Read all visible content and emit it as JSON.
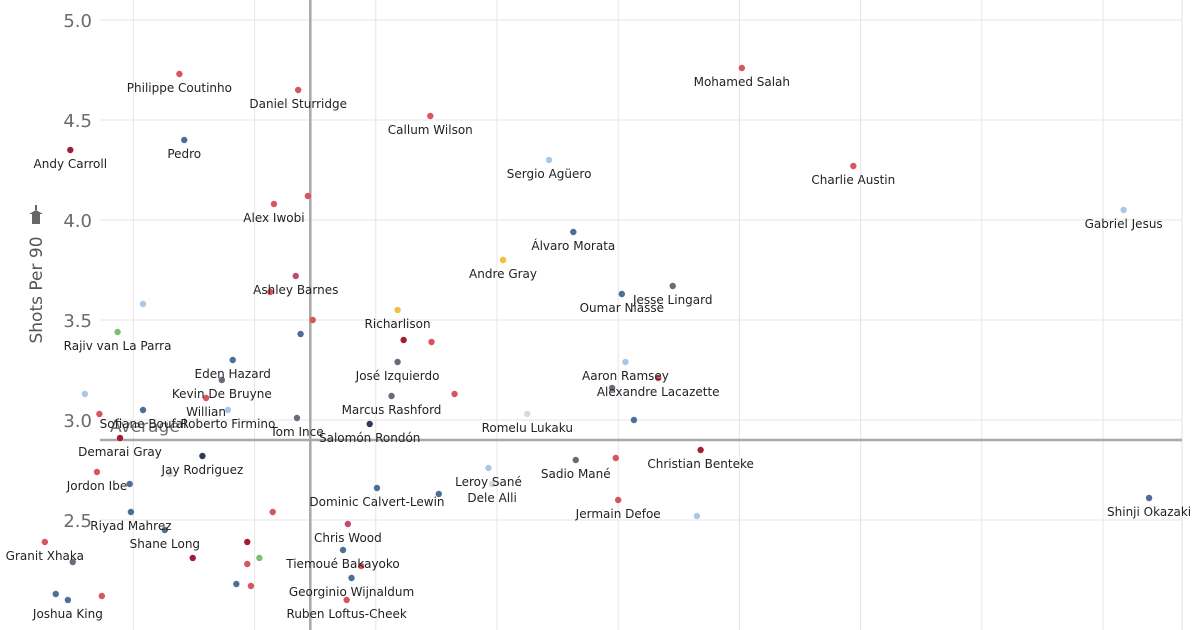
{
  "chart_data": {
    "type": "scatter",
    "xlabel": "",
    "ylabel": "Shots Per 90",
    "ylim": [
      1.95,
      5.1
    ],
    "xlim": [
      -2.3,
      7.6
    ],
    "y_ticks": [
      "5.0",
      "4.5",
      "4.0",
      "3.5",
      "3.0",
      "2.5"
    ],
    "y_tick_values": [
      5.0,
      4.5,
      4.0,
      3.5,
      3.0,
      2.5
    ],
    "x_gridlines": [
      -1.2,
      -0.2,
      0.8,
      1.8,
      2.8,
      3.8,
      4.8,
      5.8,
      6.8
    ],
    "grid": true,
    "reference_lines": {
      "y_average": 2.9,
      "y_average_label": "Average",
      "x_average": 0.26
    },
    "points": [
      {
        "label": "Philippe Coutinho",
        "x": -0.82,
        "y": 4.73,
        "color": "#d7565d"
      },
      {
        "label": "Daniel Sturridge",
        "x": 0.16,
        "y": 4.65,
        "color": "#d7565d"
      },
      {
        "label": "Mohamed Salah",
        "x": 3.82,
        "y": 4.76,
        "color": "#d7565d"
      },
      {
        "label": "Callum Wilson",
        "x": 1.25,
        "y": 4.52,
        "color": "#d7565d"
      },
      {
        "label": "Pedro",
        "x": -0.78,
        "y": 4.4,
        "color": "#4d6e96"
      },
      {
        "label": "Andy Carroll",
        "x": -1.72,
        "y": 4.35,
        "color": "#a01e38"
      },
      {
        "label": "Sergio Agüero",
        "x": 2.23,
        "y": 4.3,
        "color": "#a9c7e8"
      },
      {
        "label": "Charlie Austin",
        "x": 4.74,
        "y": 4.27,
        "color": "#d7565d"
      },
      {
        "label": "",
        "x": 0.24,
        "y": 4.12,
        "color": "#d7565d"
      },
      {
        "label": "Alex Iwobi",
        "x": -0.04,
        "y": 4.08,
        "color": "#d7565d"
      },
      {
        "label": "Gabriel Jesus",
        "x": 6.97,
        "y": 4.05,
        "color": "#a9c7e8"
      },
      {
        "label": "Álvaro Morata",
        "x": 2.43,
        "y": 3.94,
        "color": "#4d6e96"
      },
      {
        "label": "",
        "x": 1.85,
        "y": 3.8,
        "color": "#f0c040"
      },
      {
        "label": "Andre Gray",
        "x": 1.85,
        "y": 3.8,
        "color": "#f0c040"
      },
      {
        "label": "Ashley Barnes",
        "x": 0.14,
        "y": 3.72,
        "color": "#c04a7a"
      },
      {
        "label": "Jesse Lingard",
        "x": 3.25,
        "y": 3.67,
        "color": "#6a6a7a"
      },
      {
        "label": "",
        "x": -0.07,
        "y": 3.64,
        "color": "#d7565d"
      },
      {
        "label": "Oumar Niasse",
        "x": 2.83,
        "y": 3.63,
        "color": "#4d6e96"
      },
      {
        "label": "",
        "x": -1.12,
        "y": 3.58,
        "color": "#a9c7e8"
      },
      {
        "label": "Richarlison",
        "x": 0.98,
        "y": 3.55,
        "color": "#f0c040"
      },
      {
        "label": "",
        "x": 0.28,
        "y": 3.5,
        "color": "#d7565d"
      },
      {
        "label": "Rajiv van La Parra",
        "x": -1.33,
        "y": 3.44,
        "color": "#7fbf6a"
      },
      {
        "label": "",
        "x": 0.18,
        "y": 3.43,
        "color": "#4d6e96"
      },
      {
        "label": "",
        "x": 1.03,
        "y": 3.4,
        "color": "#a01e38"
      },
      {
        "label": "",
        "x": 1.26,
        "y": 3.39,
        "color": "#d7565d"
      },
      {
        "label": "Eden Hazard",
        "x": -0.38,
        "y": 3.3,
        "color": "#4d6e96"
      },
      {
        "label": "José Izquierdo",
        "x": 0.98,
        "y": 3.29,
        "color": "#6a6a7a"
      },
      {
        "label": "Aaron Ramsey",
        "x": 2.86,
        "y": 3.29,
        "color": "#a9c7e8"
      },
      {
        "label": "",
        "x": 3.13,
        "y": 3.21,
        "color": "#d7565d"
      },
      {
        "label": "Alexandre Lacazette",
        "x": 3.13,
        "y": 3.21,
        "color": "#d7565d"
      },
      {
        "label": "Kevin De Bruyne",
        "x": -0.47,
        "y": 3.2,
        "color": "#6a6a7a"
      },
      {
        "label": "",
        "x": -1.6,
        "y": 3.13,
        "color": "#a9c7e8"
      },
      {
        "label": "Willian",
        "x": -0.6,
        "y": 3.11,
        "color": "#d7565d"
      },
      {
        "label": "",
        "x": 2.75,
        "y": 3.16,
        "color": "#6a6a7a"
      },
      {
        "label": "Marcus Rashford",
        "x": 0.93,
        "y": 3.12,
        "color": "#6a6a7a"
      },
      {
        "label": "",
        "x": 1.45,
        "y": 3.13,
        "color": "#d7565d"
      },
      {
        "label": "Sofiane Boufal",
        "x": -1.12,
        "y": 3.05,
        "color": "#4d6e96"
      },
      {
        "label": "",
        "x": -1.48,
        "y": 3.03,
        "color": "#d7565d"
      },
      {
        "label": "Roberto Firmino",
        "x": -0.42,
        "y": 3.05,
        "color": "#a9c7e8"
      },
      {
        "label": "Romelu Lukaku",
        "x": 2.05,
        "y": 3.03,
        "color": "#d7d7e8"
      },
      {
        "label": "Tom Ince",
        "x": 0.15,
        "y": 3.01,
        "color": "#6a6a7a"
      },
      {
        "label": "",
        "x": 2.93,
        "y": 3.0,
        "color": "#4d6e96"
      },
      {
        "label": "Salomón Rondón",
        "x": 0.75,
        "y": 2.98,
        "color": "#303b55"
      },
      {
        "label": "Demarai Gray",
        "x": -1.31,
        "y": 2.91,
        "color": "#a01e38"
      },
      {
        "label": "Christian Benteke",
        "x": 3.48,
        "y": 2.85,
        "color": "#a01e38"
      },
      {
        "label": "Jay Rodriguez",
        "x": -0.63,
        "y": 2.82,
        "color": "#303b55"
      },
      {
        "label": "",
        "x": 2.78,
        "y": 2.81,
        "color": "#d7565d"
      },
      {
        "label": "Sadio Mané",
        "x": 2.45,
        "y": 2.8,
        "color": "#6a6a7a"
      },
      {
        "label": "Leroy Sané",
        "x": 1.73,
        "y": 2.76,
        "color": "#a9c7e8"
      },
      {
        "label": "Jordon Ibe",
        "x": -1.5,
        "y": 2.74,
        "color": "#d7565d"
      },
      {
        "label": "",
        "x": -0.9,
        "y": 2.73,
        "color": "#d9d9d9"
      },
      {
        "label": "Dele Alli",
        "x": 1.76,
        "y": 2.68,
        "color": "#d9d9d9"
      },
      {
        "label": "",
        "x": -1.23,
        "y": 2.68,
        "color": "#4d6e96"
      },
      {
        "label": "Dominic Calvert-Lewin",
        "x": 0.81,
        "y": 2.66,
        "color": "#4d6e96"
      },
      {
        "label": "",
        "x": 1.32,
        "y": 2.63,
        "color": "#4d6e96"
      },
      {
        "label": "Jermain Defoe",
        "x": 2.8,
        "y": 2.6,
        "color": "#d7565d"
      },
      {
        "label": "Shinji Okazaki",
        "x": 7.18,
        "y": 2.61,
        "color": "#4d6e96"
      },
      {
        "label": "Riyad Mahrez",
        "x": -1.22,
        "y": 2.54,
        "color": "#4d6e96"
      },
      {
        "label": "",
        "x": -0.05,
        "y": 2.54,
        "color": "#d7565d"
      },
      {
        "label": "",
        "x": 3.45,
        "y": 2.52,
        "color": "#a9c7e8"
      },
      {
        "label": "Chris Wood",
        "x": 0.57,
        "y": 2.48,
        "color": "#c04a7a"
      },
      {
        "label": "Shane Long",
        "x": -0.94,
        "y": 2.45,
        "color": "#4d6e96"
      },
      {
        "label": "",
        "x": -0.26,
        "y": 2.39,
        "color": "#a01e38"
      },
      {
        "label": "Granit Xhaka",
        "x": -1.93,
        "y": 2.39,
        "color": "#d7565d"
      },
      {
        "label": "Tiemoué Bakayoko",
        "x": 0.53,
        "y": 2.35,
        "color": "#4d6e96"
      },
      {
        "label": "",
        "x": -0.71,
        "y": 2.31,
        "color": "#a01e38"
      },
      {
        "label": "",
        "x": -0.16,
        "y": 2.31,
        "color": "#7fbf6a"
      },
      {
        "label": "",
        "x": -1.7,
        "y": 2.29,
        "color": "#6a6a7a"
      },
      {
        "label": "",
        "x": -0.26,
        "y": 2.28,
        "color": "#d7565d"
      },
      {
        "label": "",
        "x": 0.68,
        "y": 2.27,
        "color": "#d7565d"
      },
      {
        "label": "Georginio Wijnaldum",
        "x": 0.6,
        "y": 2.21,
        "color": "#4d6e96"
      },
      {
        "label": "",
        "x": -0.35,
        "y": 2.18,
        "color": "#4d6e96"
      },
      {
        "label": "",
        "x": -0.23,
        "y": 2.17,
        "color": "#d7565d"
      },
      {
        "label": "",
        "x": -1.84,
        "y": 2.13,
        "color": "#4d6e96"
      },
      {
        "label": "",
        "x": -1.46,
        "y": 2.12,
        "color": "#d7565d"
      },
      {
        "label": "Ruben Loftus-Cheek",
        "x": 0.56,
        "y": 2.1,
        "color": "#d7565d"
      },
      {
        "label": "Joshua King",
        "x": -1.74,
        "y": 2.1,
        "color": "#4d6e96"
      }
    ]
  }
}
